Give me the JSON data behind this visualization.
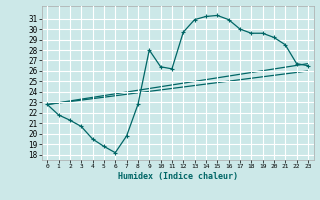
{
  "xlabel": "Humidex (Indice chaleur)",
  "xlim": [
    -0.5,
    23.5
  ],
  "ylim": [
    17.5,
    32.2
  ],
  "xticks": [
    0,
    1,
    2,
    3,
    4,
    5,
    6,
    7,
    8,
    9,
    10,
    11,
    12,
    13,
    14,
    15,
    16,
    17,
    18,
    19,
    20,
    21,
    22,
    23
  ],
  "yticks": [
    18,
    19,
    20,
    21,
    22,
    23,
    24,
    25,
    26,
    27,
    28,
    29,
    30,
    31
  ],
  "bg_color": "#cce8e8",
  "line_color": "#006666",
  "grid_color": "#ffffff",
  "curve1_x": [
    0,
    1,
    2,
    3,
    4,
    5,
    6,
    7,
    8,
    9,
    10,
    11,
    12,
    13,
    14,
    15,
    16,
    17,
    18,
    19,
    20,
    21,
    22,
    23
  ],
  "curve1_y": [
    22.8,
    21.8,
    21.3,
    20.7,
    19.5,
    18.8,
    18.2,
    19.8,
    22.8,
    28.0,
    26.4,
    26.2,
    29.7,
    30.9,
    31.2,
    31.3,
    30.9,
    30.0,
    29.6,
    29.6,
    29.2,
    28.5,
    26.7,
    26.5
  ],
  "line2_x": [
    0,
    23
  ],
  "line2_y": [
    22.8,
    26.7
  ],
  "line3_x": [
    0,
    23
  ],
  "line3_y": [
    22.8,
    26.0
  ]
}
